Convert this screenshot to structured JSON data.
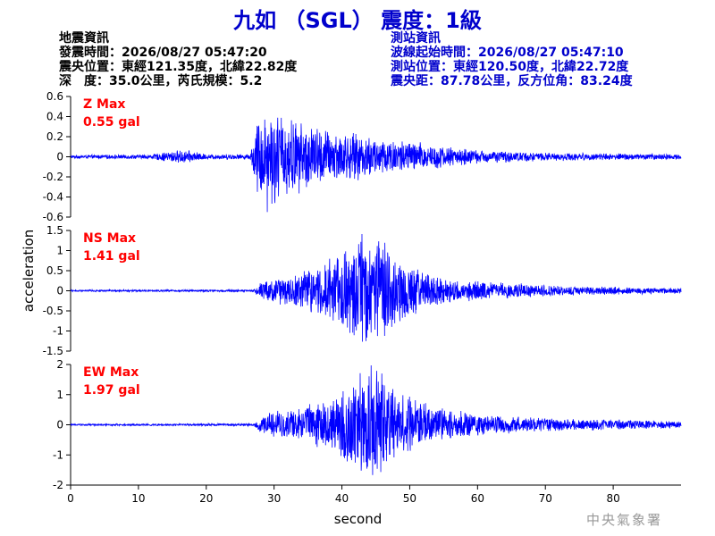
{
  "header": {
    "title": "九如 （SGL） 震度：1級"
  },
  "quake_info": {
    "heading": "地震資訊",
    "origin_time": "發震時間：2026/08/27 05:47:20",
    "epicenter": "震央位置：東經121.35度，北緯22.82度",
    "depth_magnitude": "深　度：35.0公里，芮氏規模：5.2"
  },
  "station_info": {
    "heading": "測站資訊",
    "wave_start": "波線起始時間：2026/08/27 05:47:10",
    "station_location": "測站位置：東經120.50度，北緯22.72度",
    "distance_azimuth": "震央距：87.78公里，反方位角：83.24度"
  },
  "footer": {
    "agency": "中央氣象署"
  },
  "colors": {
    "trace": "#0000ff",
    "peak_label": "#ff0000",
    "title": "#0000cc",
    "axis": "#000000"
  },
  "chart_data": {
    "type": "line",
    "xlabel": "second",
    "ylabel": "acceleration",
    "xlim": [
      0,
      90
    ],
    "x_ticks": [
      0,
      10,
      20,
      30,
      40,
      50,
      60,
      70,
      80
    ],
    "duration_s": 90,
    "p_wave_arrival_s": 27,
    "panels": [
      {
        "name": "Z",
        "max_label": "Z Max",
        "max_value": "0.55 gal",
        "peak": 0.55,
        "ylim": [
          -0.6,
          0.6
        ],
        "y_ticks": [
          -0.6,
          -0.4,
          -0.2,
          0,
          0.2,
          0.4,
          0.6
        ],
        "envelope": [
          [
            0,
            0.012
          ],
          [
            12,
            0.018
          ],
          [
            15,
            0.045
          ],
          [
            17,
            0.05
          ],
          [
            20,
            0.02
          ],
          [
            26.5,
            0.02
          ],
          [
            27.5,
            0.28
          ],
          [
            29,
            0.38
          ],
          [
            31,
            0.32
          ],
          [
            34,
            0.26
          ],
          [
            38,
            0.2
          ],
          [
            42,
            0.17
          ],
          [
            46,
            0.14
          ],
          [
            50,
            0.12
          ],
          [
            55,
            0.08
          ],
          [
            60,
            0.05
          ],
          [
            70,
            0.03
          ],
          [
            90,
            0.02
          ]
        ]
      },
      {
        "name": "NS",
        "max_label": "NS Max",
        "max_value": "1.41 gal",
        "peak": 1.41,
        "ylim": [
          -1.5,
          1.5
        ],
        "y_ticks": [
          -1.5,
          -1,
          -0.5,
          0,
          0.5,
          1,
          1.5
        ],
        "envelope": [
          [
            0,
            0.015
          ],
          [
            27,
            0.02
          ],
          [
            28,
            0.15
          ],
          [
            30,
            0.22
          ],
          [
            33,
            0.3
          ],
          [
            37,
            0.45
          ],
          [
            41,
            0.75
          ],
          [
            44,
            1.0
          ],
          [
            46,
            0.9
          ],
          [
            48,
            0.6
          ],
          [
            52,
            0.35
          ],
          [
            56,
            0.22
          ],
          [
            62,
            0.16
          ],
          [
            70,
            0.1
          ],
          [
            80,
            0.07
          ],
          [
            90,
            0.05
          ]
        ]
      },
      {
        "name": "EW",
        "max_label": "EW Max",
        "max_value": "1.97 gal",
        "peak": 1.97,
        "ylim": [
          -2,
          2
        ],
        "y_ticks": [
          -2,
          -1,
          0,
          1,
          2
        ],
        "envelope": [
          [
            0,
            0.015
          ],
          [
            27,
            0.02
          ],
          [
            28,
            0.15
          ],
          [
            30,
            0.22
          ],
          [
            34,
            0.28
          ],
          [
            38,
            0.45
          ],
          [
            41,
            0.7
          ],
          [
            44,
            0.95
          ],
          [
            46,
            0.85
          ],
          [
            48,
            0.55
          ],
          [
            52,
            0.35
          ],
          [
            57,
            0.22
          ],
          [
            63,
            0.15
          ],
          [
            72,
            0.1
          ],
          [
            90,
            0.06
          ]
        ]
      }
    ]
  }
}
